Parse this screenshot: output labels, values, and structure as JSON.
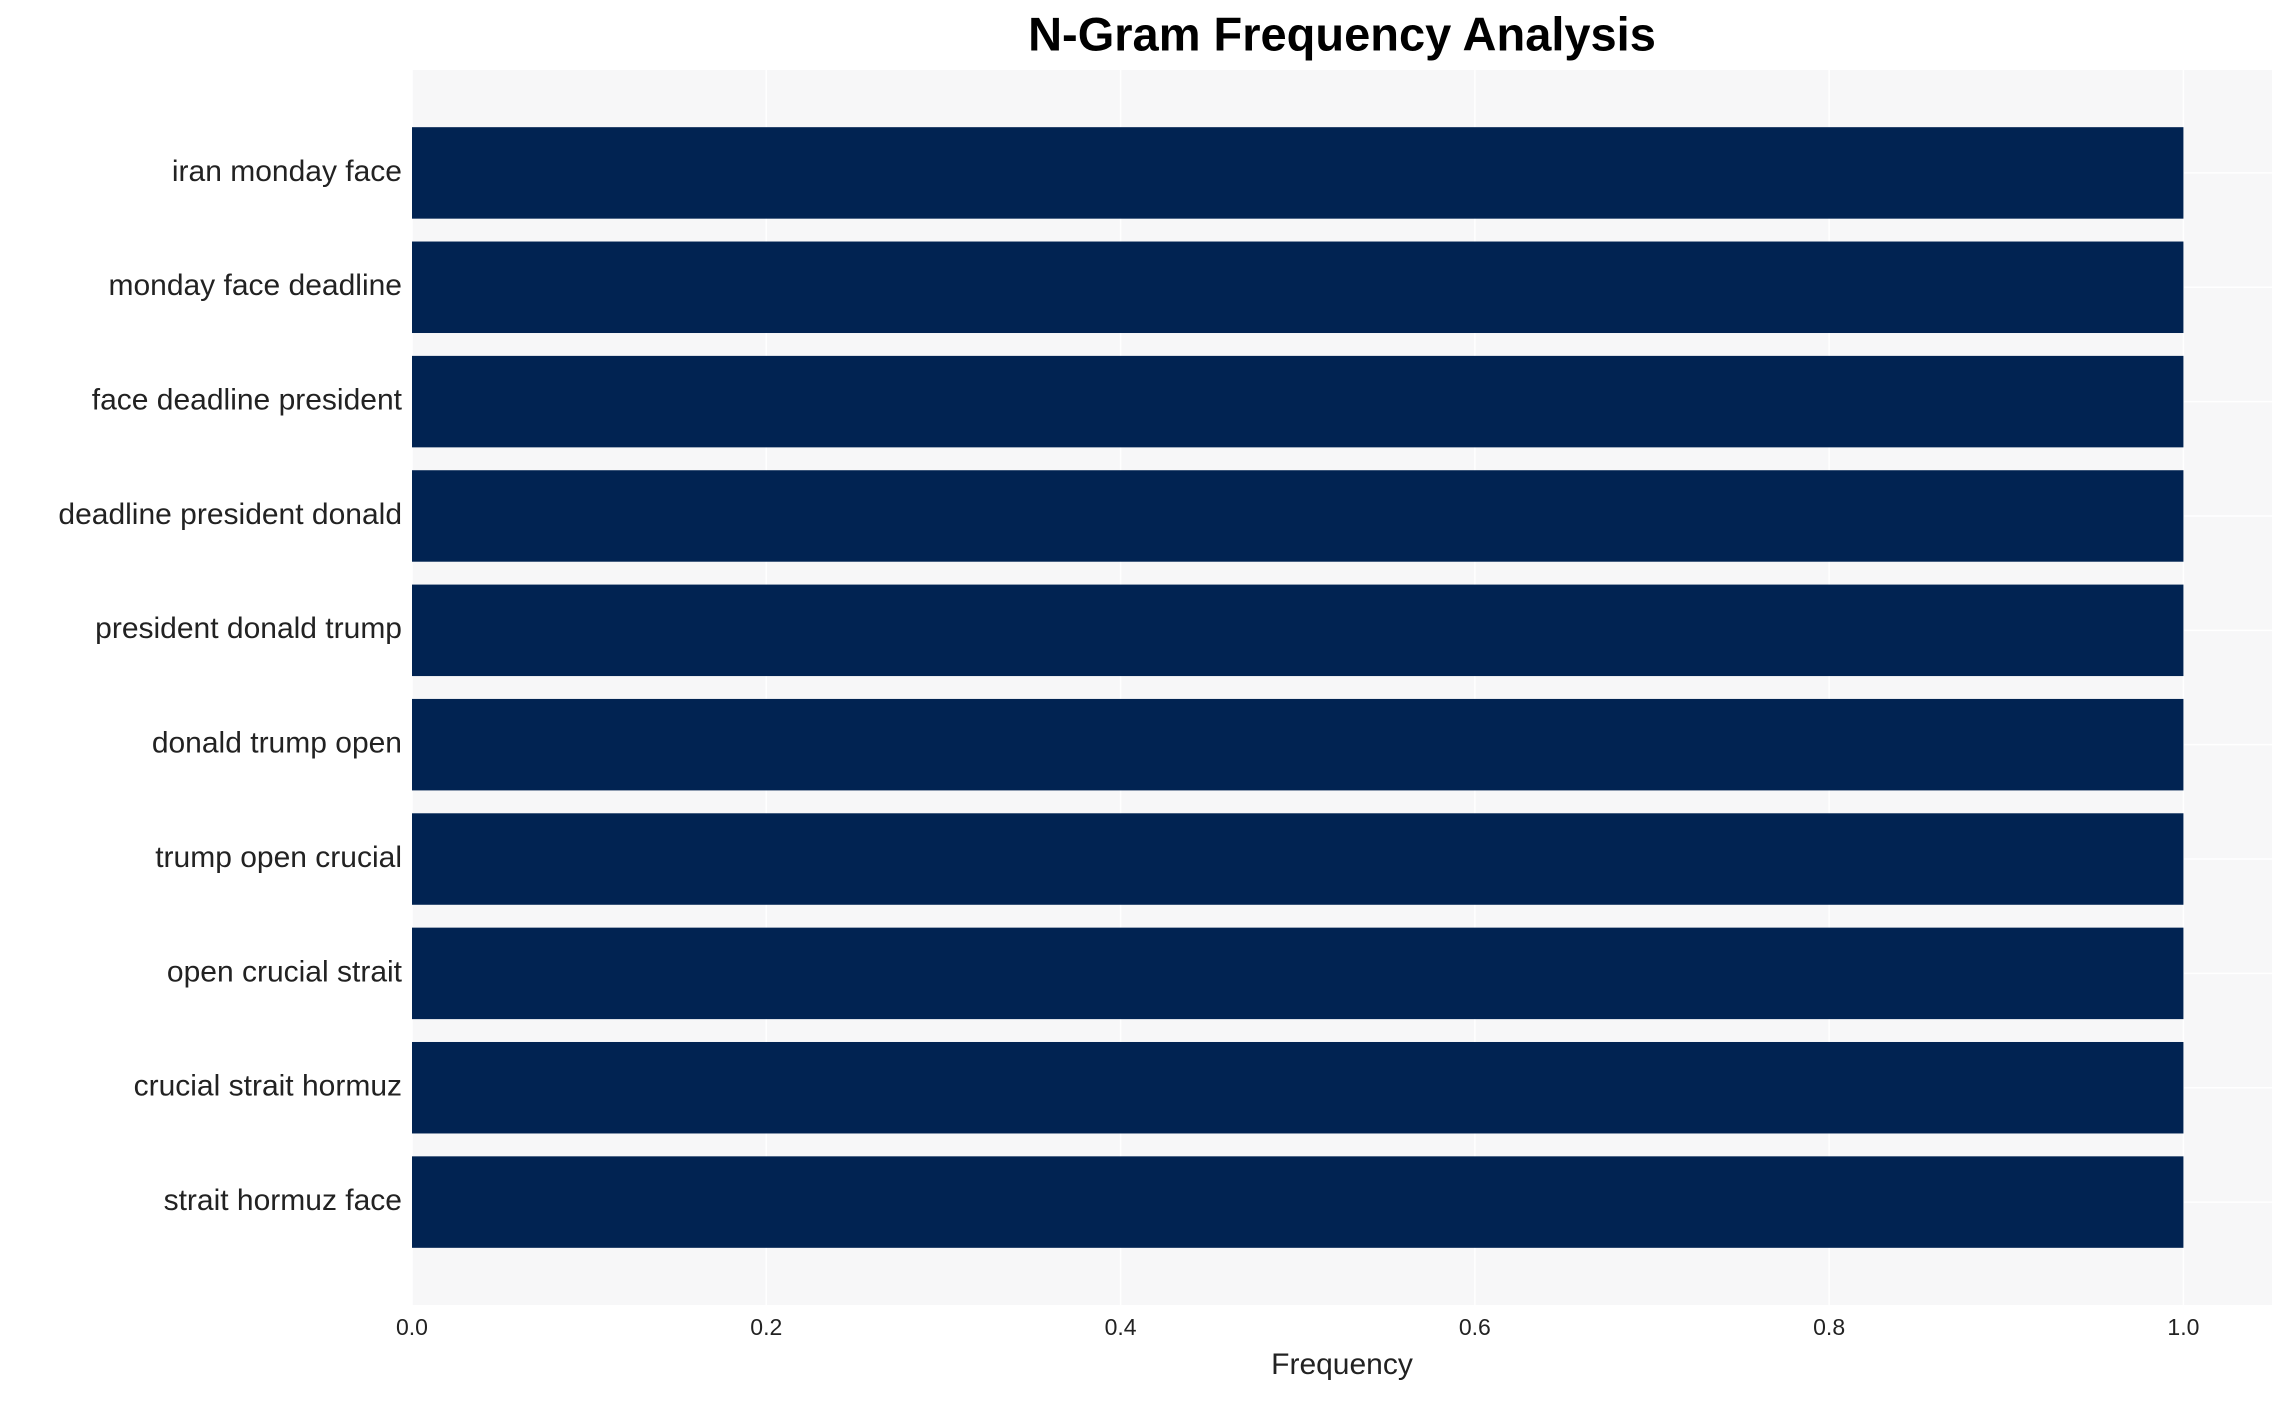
{
  "chart_data": {
    "type": "barh",
    "title": "N-Gram Frequency Analysis",
    "x_label": "Frequency",
    "categories": [
      "iran monday face",
      "monday face deadline",
      "face deadline president",
      "deadline president donald",
      "president donald trump",
      "donald trump open",
      "trump open crucial",
      "open crucial strait",
      "crucial strait hormuz",
      "strait hormuz face"
    ],
    "values": [
      1,
      1,
      1,
      1,
      1,
      1,
      1,
      1,
      1,
      1
    ],
    "color": "#012352",
    "xlim": [
      0,
      1.05
    ],
    "xticks": [
      {
        "value": 0,
        "label": "0.0"
      },
      0.2,
      0.4,
      0.6,
      0.8,
      {
        "value": 1,
        "label": "1.0"
      }
    ],
    "grid": true
  }
}
